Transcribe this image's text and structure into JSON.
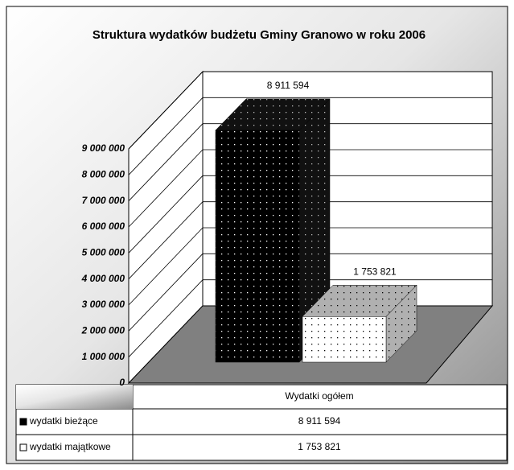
{
  "chart_data": {
    "type": "bar",
    "title": "Struktura wydatków budżetu Gminy Granowo w roku 2006",
    "categories": [
      "Wydatki ogółem"
    ],
    "series": [
      {
        "name": "wydatki bieżące",
        "color": "#000000",
        "values": [
          8911594
        ],
        "value_labels": [
          "8 911 594"
        ]
      },
      {
        "name": "wydatki majątkowe",
        "color": "#ffffff",
        "values": [
          1753821
        ],
        "value_labels": [
          "1 753 821"
        ]
      }
    ],
    "ylim": [
      0,
      9000000
    ],
    "yticks": [
      0,
      {
        "value": 1000000,
        "label": "1 000 000"
      },
      {
        "value": 2000000,
        "label": "2 000 000"
      },
      {
        "value": 3000000,
        "label": "3 000 000"
      },
      {
        "value": 4000000,
        "label": "4 000 000"
      },
      {
        "value": 5000000,
        "label": "5 000 000"
      },
      {
        "value": 6000000,
        "label": "6 000 000"
      },
      {
        "value": 7000000,
        "label": "7 000 000"
      },
      {
        "value": 8000000,
        "label": "8 000 000"
      },
      {
        "value": 9000000,
        "label": "9 000 000"
      }
    ],
    "grid": true
  }
}
